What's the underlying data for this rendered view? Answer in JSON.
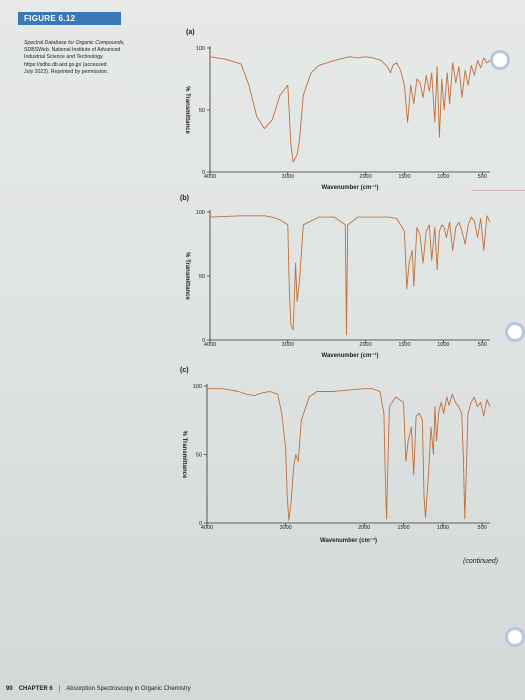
{
  "figure": {
    "label": "FIGURE 6.12",
    "caption_lines": [
      "Spectral Database for Organic Compounds,",
      "SDBSWeb. National Institute of Advanced",
      "Industrial Science and Technology.",
      "https://sdbs.db.aist.go.jp/ (accessed",
      "July 2022). Reprinted by permission."
    ],
    "continued": "(continued)"
  },
  "footer": {
    "page_number": "90",
    "chapter": "CHAPTER 6",
    "separator": "|",
    "title": "Absorption Spectroscopy in Organic Chemistry"
  },
  "colors": {
    "spectrum": "#c0703a",
    "axis": "#333333",
    "bar": "#3a78b5"
  },
  "chart_data": [
    {
      "type": "line",
      "panel": "(a)",
      "xlabel": "Wavenumber (cm⁻¹)",
      "ylabel": "% Transmittance",
      "x_reversed": true,
      "xlim": [
        4000,
        400
      ],
      "ylim": [
        0,
        100
      ],
      "xticks": [
        4000,
        3000,
        2000,
        1500,
        1000,
        500
      ],
      "yticks": [
        0,
        50,
        100
      ],
      "series": [
        {
          "x": [
            4000,
            3800,
            3600,
            3500,
            3400,
            3300,
            3200,
            3100,
            3000,
            2960,
            2930,
            2880,
            2850,
            2800,
            2700,
            2600,
            2400,
            2200,
            2100,
            2000,
            1900,
            1800,
            1720,
            1680,
            1650,
            1600,
            1550,
            1500,
            1460,
            1420,
            1380,
            1340,
            1300,
            1260,
            1220,
            1180,
            1150,
            1110,
            1080,
            1050,
            1020,
            990,
            950,
            920,
            880,
            840,
            800,
            760,
            720,
            680,
            640,
            600,
            560,
            520,
            480,
            440,
            400
          ],
          "y": [
            93,
            91,
            87,
            70,
            45,
            35,
            42,
            62,
            70,
            22,
            8,
            14,
            25,
            62,
            80,
            86,
            90,
            93,
            92,
            93,
            92,
            90,
            85,
            80,
            86,
            88,
            82,
            70,
            40,
            70,
            55,
            75,
            72,
            60,
            78,
            65,
            80,
            40,
            85,
            28,
            75,
            50,
            80,
            55,
            88,
            72,
            85,
            60,
            82,
            70,
            86,
            78,
            90,
            84,
            92,
            88,
            90
          ]
        }
      ]
    },
    {
      "type": "line",
      "panel": "(b)",
      "xlabel": "Wavenumber (cm⁻¹)",
      "ylabel": "% Transmittance",
      "x_reversed": true,
      "xlim": [
        4000,
        400
      ],
      "ylim": [
        0,
        100
      ],
      "xticks": [
        4000,
        3000,
        2000,
        1500,
        1000,
        500
      ],
      "yticks": [
        0,
        50,
        100
      ],
      "series": [
        {
          "x": [
            4000,
            3600,
            3300,
            3200,
            3100,
            3000,
            2980,
            2960,
            2930,
            2900,
            2880,
            2850,
            2800,
            2600,
            2400,
            2260,
            2245,
            2230,
            2100,
            1900,
            1700,
            1600,
            1500,
            1470,
            1440,
            1400,
            1380,
            1340,
            1300,
            1260,
            1220,
            1180,
            1150,
            1110,
            1080,
            1050,
            1020,
            990,
            960,
            920,
            880,
            840,
            800,
            760,
            720,
            680,
            640,
            600,
            560,
            520,
            480,
            440,
            400
          ],
          "y": [
            96,
            97,
            97,
            96,
            94,
            90,
            40,
            12,
            8,
            60,
            30,
            45,
            90,
            96,
            96,
            90,
            4,
            90,
            96,
            96,
            96,
            95,
            85,
            40,
            60,
            70,
            42,
            88,
            82,
            60,
            85,
            90,
            62,
            88,
            55,
            85,
            90,
            88,
            80,
            92,
            70,
            88,
            92,
            85,
            75,
            90,
            96,
            93,
            80,
            95,
            70,
            97,
            92
          ]
        }
      ]
    },
    {
      "type": "line",
      "panel": "(c)",
      "xlabel": "Wavenumber (cm⁻¹)",
      "ylabel": "% Transmittance",
      "x_reversed": true,
      "xlim": [
        4000,
        400
      ],
      "ylim": [
        0,
        100
      ],
      "xticks": [
        4000,
        3000,
        2000,
        1500,
        1000,
        500
      ],
      "yticks": [
        0,
        50,
        100
      ],
      "series": [
        {
          "x": [
            4000,
            3800,
            3600,
            3500,
            3400,
            3300,
            3200,
            3100,
            3050,
            3000,
            2980,
            2960,
            2930,
            2900,
            2870,
            2840,
            2800,
            2700,
            2600,
            2400,
            2200,
            2000,
            1900,
            1800,
            1750,
            1730,
            1715,
            1700,
            1680,
            1600,
            1500,
            1470,
            1440,
            1400,
            1370,
            1340,
            1300,
            1260,
            1240,
            1220,
            1180,
            1150,
            1120,
            1100,
            1080,
            1050,
            1020,
            990,
            950,
            920,
            880,
            840,
            800,
            760,
            740,
            720,
            700,
            680,
            640,
            600,
            560,
            520,
            480,
            440,
            400
          ],
          "y": [
            98,
            98,
            96,
            94,
            93,
            95,
            96,
            94,
            80,
            55,
            20,
            2,
            15,
            40,
            50,
            45,
            75,
            92,
            96,
            96,
            97,
            98,
            98,
            96,
            80,
            30,
            3,
            40,
            85,
            92,
            88,
            45,
            60,
            70,
            35,
            78,
            80,
            75,
            20,
            4,
            38,
            70,
            50,
            85,
            60,
            82,
            88,
            80,
            92,
            86,
            94,
            88,
            85,
            80,
            50,
            3,
            40,
            80,
            88,
            92,
            85,
            88,
            78,
            90,
            85
          ]
        }
      ]
    }
  ]
}
